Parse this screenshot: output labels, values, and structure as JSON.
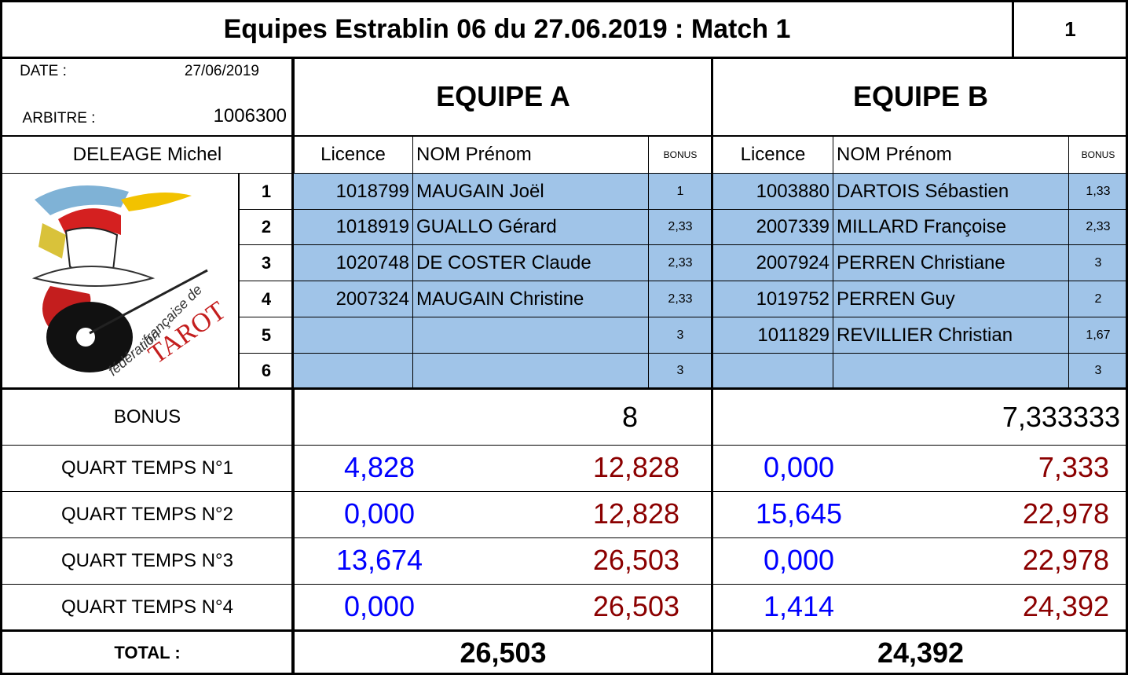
{
  "header": {
    "title": "Equipes Estrablin 06 du 27.06.2019 : Match 1",
    "number": "1"
  },
  "info": {
    "date_label": "DATE :",
    "date": "27/06/2019",
    "arbitre_label": "ARBITRE :",
    "arbitre": "1006300",
    "referee": "DELEAGE Michel"
  },
  "logo": {
    "line1": "fédération",
    "line2": "française de",
    "line3": "TAROT"
  },
  "row_numbers": [
    "1",
    "2",
    "3",
    "4",
    "5",
    "6"
  ],
  "labels": {
    "bonus": "BONUS",
    "quarters": [
      "QUART TEMPS N°1",
      "QUART TEMPS N°2",
      "QUART TEMPS N°3",
      "QUART TEMPS N°4"
    ],
    "total": "TOTAL :"
  },
  "teams": [
    {
      "name": "EQUIPE A",
      "columns": [
        "Licence",
        "NOM Prénom",
        "BONUS"
      ],
      "players": [
        {
          "licence": "1018799",
          "name": "MAUGAIN Joël",
          "bonus": "1"
        },
        {
          "licence": "1018919",
          "name": "GUALLO Gérard",
          "bonus": "2,33"
        },
        {
          "licence": "1020748",
          "name": "DE COSTER Claude",
          "bonus": "2,33"
        },
        {
          "licence": "2007324",
          "name": "MAUGAIN Christine",
          "bonus": "2,33"
        },
        {
          "bonus": "3"
        },
        {
          "bonus": "3"
        }
      ],
      "bonus": "8",
      "quarters": [
        [
          "4,828",
          "12,828"
        ],
        [
          "0,000",
          "12,828"
        ],
        [
          "13,674",
          "26,503"
        ],
        [
          "0,000",
          "26,503"
        ]
      ],
      "total": "26,503"
    },
    {
      "name": "EQUIPE B",
      "columns": [
        "Licence",
        "NOM Prénom",
        "BONUS"
      ],
      "players": [
        {
          "licence": "1003880",
          "name": "DARTOIS Sébastien",
          "bonus": "1,33"
        },
        {
          "licence": "2007339",
          "name": "MILLARD Françoise",
          "bonus": "2,33"
        },
        {
          "licence": "2007924",
          "name": "PERREN Christiane",
          "bonus": "3"
        },
        {
          "licence": "1019752",
          "name": "PERREN Guy",
          "bonus": "2"
        },
        {
          "licence": "1011829",
          "name": "REVILLIER Christian",
          "bonus": "1,67"
        },
        {
          "bonus": "3"
        }
      ],
      "bonus": "7,333333",
      "quarters": [
        [
          "0,000",
          "7,333"
        ],
        [
          "15,645",
          "22,978"
        ],
        [
          "0,000",
          "22,978"
        ],
        [
          "1,414",
          "24,392"
        ]
      ],
      "total": "24,392"
    }
  ]
}
